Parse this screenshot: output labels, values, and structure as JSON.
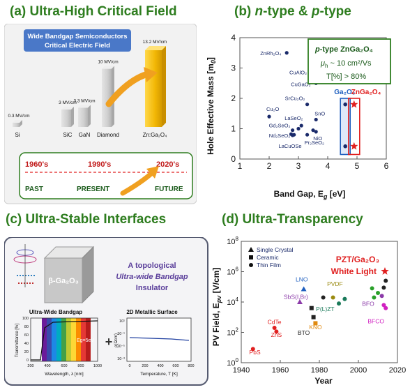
{
  "panels": {
    "a_title": "(a) Ultra-High Critical Field",
    "b_title_prefix": "(b) ",
    "b_title_n": "n",
    "b_title_mid": "-type & ",
    "b_title_p": "p",
    "b_title_suffix": "-type",
    "c_title": "(c) Ultra-Stable Interfaces",
    "d_title": "(d) Ultra-Transparency"
  },
  "chart_data": [
    {
      "type": "bar",
      "panel": "a",
      "title": "Wide Bandgap Semiconductors\nCritical Electric Field",
      "categories": [
        "Si",
        "SiC",
        "GaN",
        "Diamond",
        "Zn:Ga₂O₄"
      ],
      "values": [
        0.3,
        3,
        3.3,
        10,
        13.2
      ],
      "value_labels": [
        "0.3 MV/cm",
        "3 MV/cm",
        "3.3 MV/cm",
        "10 MV/cm",
        "13.2 MV/cm"
      ],
      "highlight_color": "#f2b705",
      "bar_color": "#cfcfcf",
      "timeline": {
        "years": [
          "1960's",
          "1990's",
          "2020's"
        ],
        "eras": [
          "PAST",
          "PRESENT",
          "FUTURE"
        ]
      }
    },
    {
      "type": "scatter",
      "panel": "b",
      "xlabel": "Band Gap, E",
      "xlabel_sub": "g",
      "xlabel_unit": " [eV]",
      "ylabel": "Hole Effective Mass [m",
      "ylabel_sub": "0",
      "ylabel_end": "]",
      "xlim": [
        1,
        6
      ],
      "ylim": [
        0,
        4
      ],
      "xticks": [
        1,
        2,
        3,
        4,
        5,
        6
      ],
      "yticks": [
        0,
        1,
        2,
        3,
        4
      ],
      "points": [
        {
          "label": "ZnRh₂O₄",
          "x": 2.6,
          "y": 3.5
        },
        {
          "label": "CuAlO₂",
          "x": 3.5,
          "y": 2.7
        },
        {
          "label": "CuGaO₂",
          "x": 3.6,
          "y": 2.5
        },
        {
          "label": "SrCu₂O₂",
          "x": 3.3,
          "y": 1.8
        },
        {
          "label": "SnO",
          "x": 3.6,
          "y": 1.3
        },
        {
          "label": "Cu₂O",
          "x": 2.0,
          "y": 1.4
        },
        {
          "label": "LaSeO₂",
          "x": 3.1,
          "y": 1.1
        },
        {
          "label": "Gd₂SeO₂",
          "x": 2.8,
          "y": 0.95
        },
        {
          "label": "Nd₂SeO₂",
          "x": 2.85,
          "y": 0.8
        },
        {
          "label": "NiO",
          "x": 3.6,
          "y": 0.9
        },
        {
          "label": "LaCuOSe",
          "x": 2.8,
          "y": 0.78
        },
        {
          "label": "Pr₂SeO₂",
          "x": 3.3,
          "y": 0.8
        },
        {
          "label": "",
          "x": 3.5,
          "y": 0.95
        },
        {
          "label": "",
          "x": 3.0,
          "y": 1.0
        },
        {
          "label": "",
          "x": 2.75,
          "y": 0.82
        }
      ],
      "ga2o3": {
        "label": "Ga₂O₃",
        "x": 4.6,
        "y_values": [
          1.8,
          0.42
        ],
        "color": "#1f5fbf"
      },
      "znga2o4": {
        "label": "ZnGa₂O₄",
        "x": 4.9,
        "y_values": [
          1.8,
          0.42
        ],
        "color": "#e02020"
      },
      "info_box": {
        "line1_p": "p",
        "line1_rest": "-type ZnGa₂O₄",
        "line2": "μ",
        "line2_sub": "h",
        "line2_rest": " ~ 10 cm²/Vs",
        "line3": "T[%] > 80%"
      }
    },
    {
      "type": "scatter",
      "panel": "d",
      "xlabel": "Year",
      "ylabel": "PV Field, E",
      "ylabel_sub": "pv",
      "ylabel_end": " [V/cm]",
      "xlim": [
        1940,
        2020
      ],
      "ylim_log10": [
        0,
        8
      ],
      "xticks": [
        1940,
        1960,
        1980,
        2000,
        2020
      ],
      "yticks_log10": [
        0,
        2,
        4,
        6,
        8
      ],
      "legend": [
        "Single Crystal",
        "Ceramic",
        "Thin Film"
      ],
      "annotation_line1": "PZT/Ga₂O₃",
      "annotation_line2": "White Light",
      "labels": [
        {
          "text": "PbS",
          "year": 1947,
          "log10": 0.55,
          "color": "#e02020"
        },
        {
          "text": "CdTe",
          "year": 1957,
          "log10": 2.55,
          "color": "#e02020"
        },
        {
          "text": "ZnS",
          "year": 1958,
          "log10": 1.7,
          "color": "#e02020"
        },
        {
          "text": "LNO",
          "year": 1971,
          "log10": 5.35,
          "color": "#1f5fbf"
        },
        {
          "text": "SbS(I,Br)",
          "year": 1968,
          "log10": 4.2,
          "color": "#8b3aa8"
        },
        {
          "text": "PVDF",
          "year": 1988,
          "log10": 5.05,
          "color": "#9a8a10"
        },
        {
          "text": "P(L)ZT",
          "year": 1983,
          "log10": 3.4,
          "color": "#1a7a5a"
        },
        {
          "text": "KNO",
          "year": 1978,
          "log10": 2.2,
          "color": "#e08a10"
        },
        {
          "text": "BTO",
          "year": 1972,
          "log10": 1.85,
          "color": "#222222"
        },
        {
          "text": "BFO",
          "year": 2005,
          "log10": 3.75,
          "color": "#8b3aa8"
        },
        {
          "text": "BFCO",
          "year": 2009,
          "log10": 2.6,
          "color": "#d020c0"
        }
      ],
      "points": [
        {
          "year": 1946,
          "log10": 0.9,
          "shape": "circle",
          "color": "#e02020"
        },
        {
          "year": 1957,
          "log10": 2.3,
          "shape": "circle",
          "color": "#e02020"
        },
        {
          "year": 1958,
          "log10": 2.05,
          "shape": "circle",
          "color": "#e02020"
        },
        {
          "year": 1972,
          "log10": 4.85,
          "shape": "triangle",
          "color": "#1f5fbf"
        },
        {
          "year": 1970,
          "log10": 4.0,
          "shape": "triangle",
          "color": "#8b3aa8"
        },
        {
          "year": 1977,
          "log10": 3.0,
          "shape": "square",
          "color": "#222222"
        },
        {
          "year": 1978,
          "log10": 2.6,
          "shape": "square",
          "color": "#e08a10"
        },
        {
          "year": 1976,
          "log10": 3.6,
          "shape": "square",
          "color": "#222222"
        },
        {
          "year": 1982,
          "log10": 4.3,
          "shape": "circle",
          "color": "#222222"
        },
        {
          "year": 1987,
          "log10": 4.3,
          "shape": "circle",
          "color": "#9a8a10"
        },
        {
          "year": 1990,
          "log10": 3.9,
          "shape": "circle",
          "color": "#1a7a5a"
        },
        {
          "year": 1993,
          "log10": 4.2,
          "shape": "circle",
          "color": "#1a7a5a"
        },
        {
          "year": 2007,
          "log10": 4.9,
          "shape": "circle",
          "color": "#2aa02a"
        },
        {
          "year": 2008,
          "log10": 4.3,
          "shape": "circle",
          "color": "#2aa02a"
        },
        {
          "year": 2010,
          "log10": 4.6,
          "shape": "circle",
          "color": "#2aa02a"
        },
        {
          "year": 2012,
          "log10": 4.4,
          "shape": "circle",
          "color": "#8b3aa8"
        },
        {
          "year": 2013,
          "log10": 4.95,
          "shape": "circle",
          "color": "#222222"
        },
        {
          "year": 2014,
          "log10": 5.4,
          "shape": "circle",
          "color": "#222222"
        },
        {
          "year": 2013,
          "log10": 3.8,
          "shape": "circle",
          "color": "#d020c0"
        },
        {
          "year": 2014,
          "log10": 3.6,
          "shape": "circle",
          "color": "#d020c0"
        }
      ]
    }
  ],
  "panel_c": {
    "text_line1": "A topological",
    "text_line2": "Ultra-wide Bandgap",
    "text_line3": "Insulator",
    "cube_label": "β-Ga₂O₃",
    "inset1_title": "Ultra-Wide Bandgap",
    "inset1_ylabel": "Transmittance [%]",
    "inset1_xlabel": "Wavelength, λ [nm]",
    "inset1_xticks": [
      "200",
      "400",
      "600",
      "800",
      "1000"
    ],
    "inset1_yticks": [
      "0",
      "20",
      "40",
      "60",
      "80",
      "100"
    ],
    "inset1_annotation": "Eg=5eV",
    "plus": "+",
    "inset2_title": "2D Metallic Surface",
    "inset2_ylabel": "ρ(Ωcm)",
    "inset2_xlabel": "Temperature, T [K]",
    "inset2_xticks": [
      "0",
      "200",
      "400",
      "600",
      "800"
    ],
    "inset2_yticks": [
      "10⁻³",
      "10⁻⁵",
      "10⁻¹",
      "10¹"
    ]
  }
}
